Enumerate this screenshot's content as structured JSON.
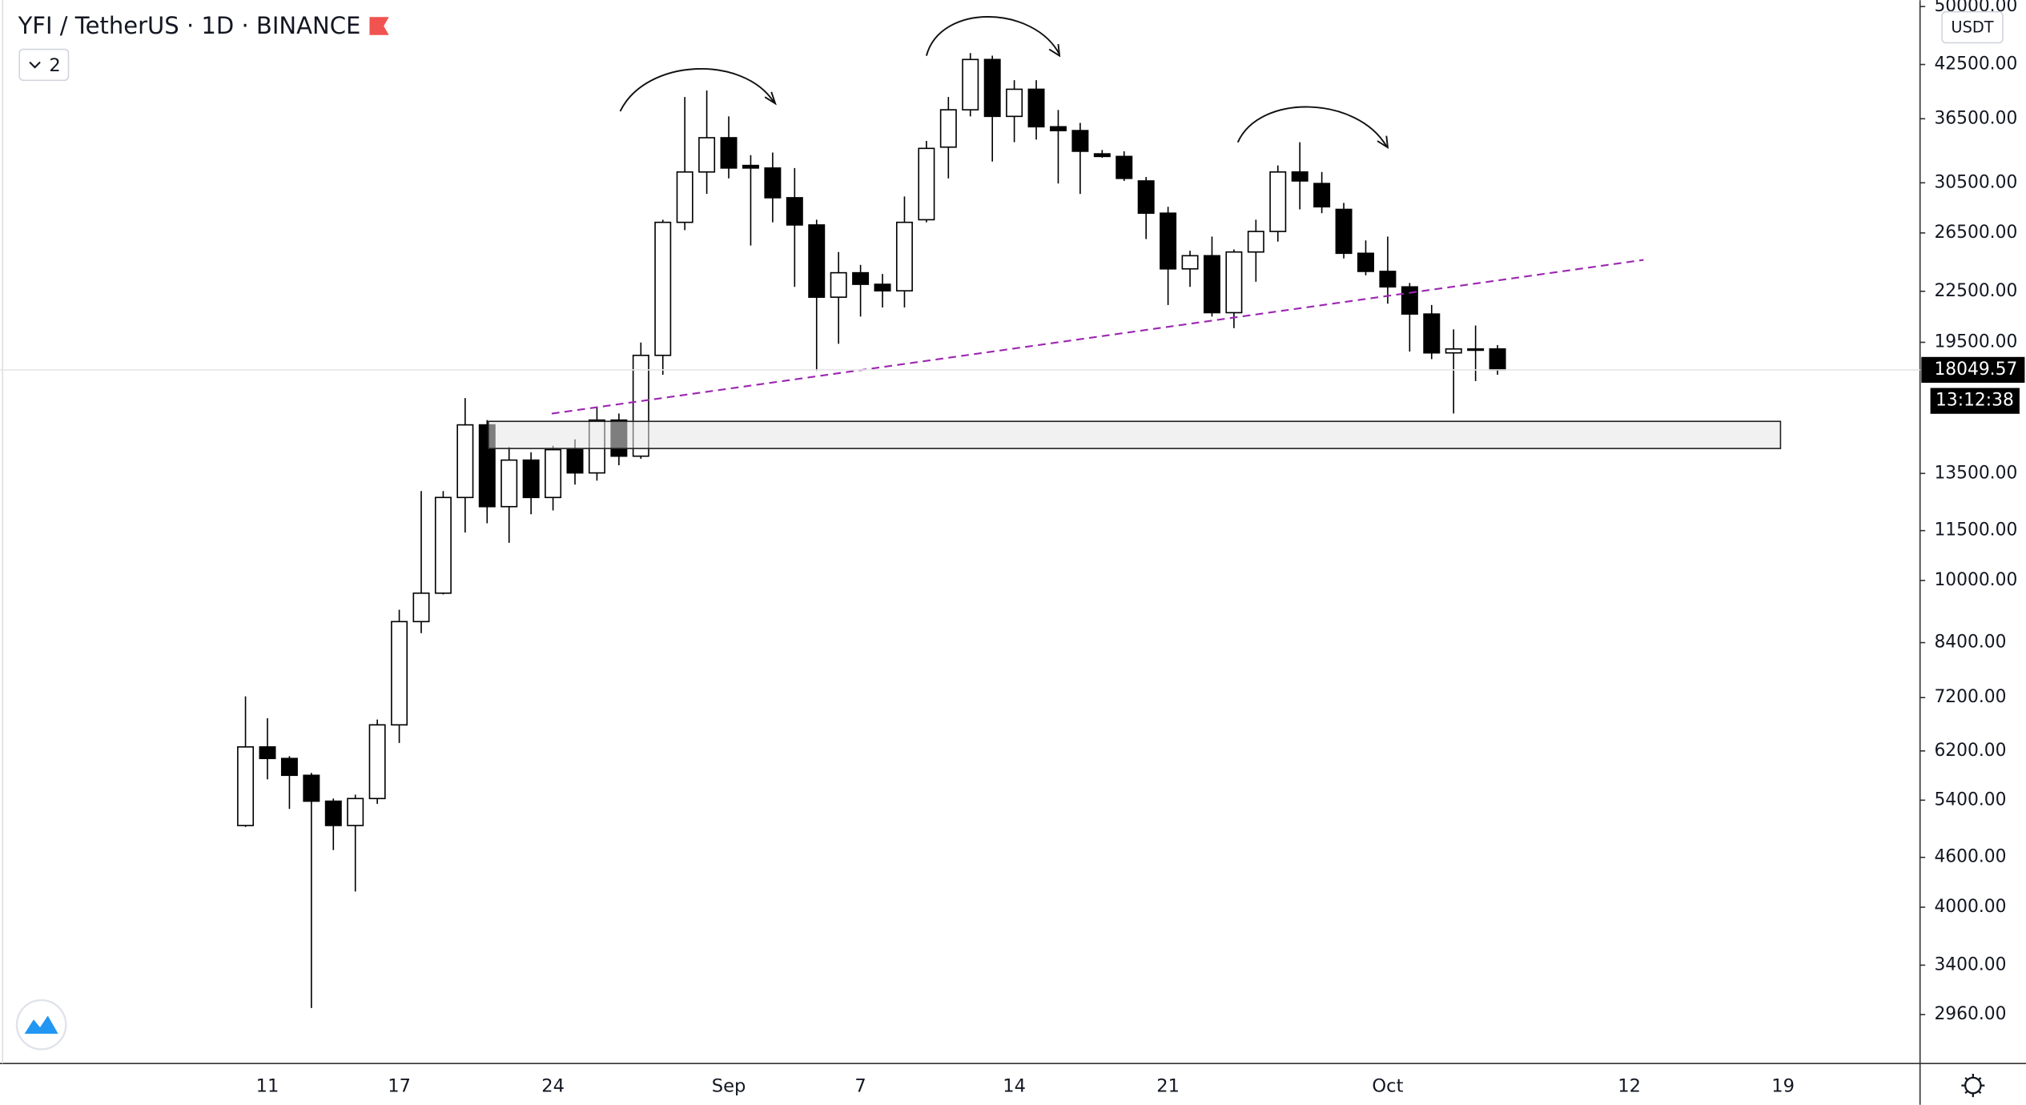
{
  "chart_data": {
    "type": "candlestick",
    "title": "YFI / TetherUS · 1D · BINANCE",
    "indicator_count": 2,
    "currency": "USDT",
    "categories": [
      null,
      "11",
      null,
      null,
      null,
      null,
      null,
      "17",
      null,
      null,
      null,
      null,
      null,
      null,
      "24",
      null,
      null,
      null,
      null,
      null,
      null,
      null,
      "Sep",
      null,
      null,
      null,
      null,
      null,
      "7",
      null,
      null,
      null,
      null,
      null,
      null,
      "14",
      null,
      null,
      null,
      null,
      null,
      null,
      "21",
      null,
      null,
      null,
      null,
      null,
      null,
      null,
      null,
      null,
      "Oct",
      null,
      null,
      null,
      null,
      null,
      null,
      null,
      null,
      null,
      null,
      "12",
      null,
      null,
      null,
      null,
      null,
      null,
      "19"
    ],
    "open": [
      5030,
      6270,
      6070,
      5790,
      5385,
      5030,
      5425,
      6670,
      8910,
      9650,
      12620,
      15470,
      12300,
      14015,
      12620,
      14430,
      13520,
      15680,
      14170,
      18800,
      27300,
      31440,
      34610,
      32020,
      31790,
      29250,
      27100,
      22130,
      23700,
      22945,
      22530,
      27500,
      33710,
      37430,
      43100,
      36745,
      39650,
      35690,
      35310,
      33080,
      32840,
      30660,
      28010,
      23960,
      24860,
      21190,
      25120,
      26610,
      31440,
      30440,
      28310,
      25030,
      23790,
      22780,
      21110,
      18930,
      19140,
      19140,
      null,
      null,
      null,
      null,
      null,
      null,
      null,
      null,
      null,
      null,
      null,
      null,
      null
    ],
    "high": [
      7225,
      6795,
      6110,
      5830,
      5425,
      5485,
      6770,
      9210,
      12850,
      12850,
      16680,
      15680,
      14535,
      14325,
      14590,
      14855,
      16270,
      15970,
      19490,
      27500,
      38800,
      39510,
      36745,
      32960,
      33200,
      31790,
      27500,
      25120,
      24230,
      23620,
      29350,
      34300,
      38800,
      43880,
      43570,
      40670,
      40670,
      37410,
      36080,
      33440,
      33320,
      31000,
      28515,
      25210,
      26230,
      25300,
      27500,
      32020,
      34180,
      31440,
      28830,
      25950,
      26230,
      23030,
      21650,
      20220,
      20440,
      19350,
      null,
      null,
      null,
      null,
      null,
      null,
      null,
      null,
      null,
      null,
      null,
      null,
      null
    ],
    "low": [
      5010,
      5725,
      5270,
      3015,
      4695,
      4180,
      5345,
      6340,
      8625,
      9615,
      11440,
      11740,
      11115,
      12040,
      12170,
      13085,
      13230,
      13815,
      14065,
      17805,
      26710,
      29565,
      30880,
      25580,
      27300,
      22780,
      18000,
      19420,
      20960,
      21500,
      21500,
      27300,
      30880,
      36745,
      32370,
      34180,
      34430,
      30440,
      29565,
      32720,
      30660,
      26050,
      21650,
      22780,
      20960,
      20290,
      23110,
      25860,
      28310,
      28010,
      24670,
      23530,
      21730,
      19000,
      18600,
      15970,
      17490,
      17805,
      null,
      null,
      null,
      null,
      null,
      null,
      null,
      null,
      null,
      null,
      null,
      null,
      null
    ],
    "close": [
      6270,
      6070,
      5790,
      5385,
      5030,
      5425,
      6670,
      8910,
      9650,
      12620,
      15470,
      12300,
      14015,
      12620,
      14430,
      13520,
      15680,
      14170,
      18800,
      27300,
      31440,
      34610,
      31790,
      31790,
      29250,
      27100,
      22130,
      23700,
      22945,
      22530,
      27300,
      33590,
      37430,
      43100,
      36745,
      39650,
      35690,
      35310,
      33320,
      32840,
      30880,
      28010,
      23960,
      24860,
      21190,
      25120,
      26610,
      31440,
      30660,
      28515,
      25030,
      23790,
      22780,
      21110,
      18930,
      19140,
      19070,
      18049.57,
      null,
      null,
      null,
      null,
      null,
      null,
      null,
      null,
      null,
      null,
      null,
      null,
      null
    ],
    "up_color": "#ffffff",
    "down_color": "#000000",
    "log_scale": true,
    "grid": false,
    "ylim": [
      2590,
      50900
    ],
    "yticks": [
      {
        "value": 50000,
        "label": "50000.00"
      },
      {
        "value": 42500,
        "label": "42500.00"
      },
      {
        "value": 36500,
        "label": "36500.00"
      },
      {
        "value": 30500,
        "label": "30500.00"
      },
      {
        "value": 26500,
        "label": "26500.00"
      },
      {
        "value": 22500,
        "label": "22500.00"
      },
      {
        "value": 19500,
        "label": "19500.00"
      },
      {
        "value": 13500,
        "label": "13500.00"
      },
      {
        "value": 11500,
        "label": "11500.00"
      },
      {
        "value": 10000,
        "label": "10000.00"
      },
      {
        "value": 8400,
        "label": "8400.00"
      },
      {
        "value": 7200,
        "label": "7200.00"
      },
      {
        "value": 6200,
        "label": "6200.00"
      },
      {
        "value": 5400,
        "label": "5400.00"
      },
      {
        "value": 4600,
        "label": "4600.00"
      },
      {
        "value": 4000,
        "label": "4000.00"
      },
      {
        "value": 3400,
        "label": "3400.00"
      },
      {
        "value": 2960,
        "label": "2960.00"
      }
    ],
    "last_price": 18049.57,
    "countdown": "13:12:38"
  }
}
